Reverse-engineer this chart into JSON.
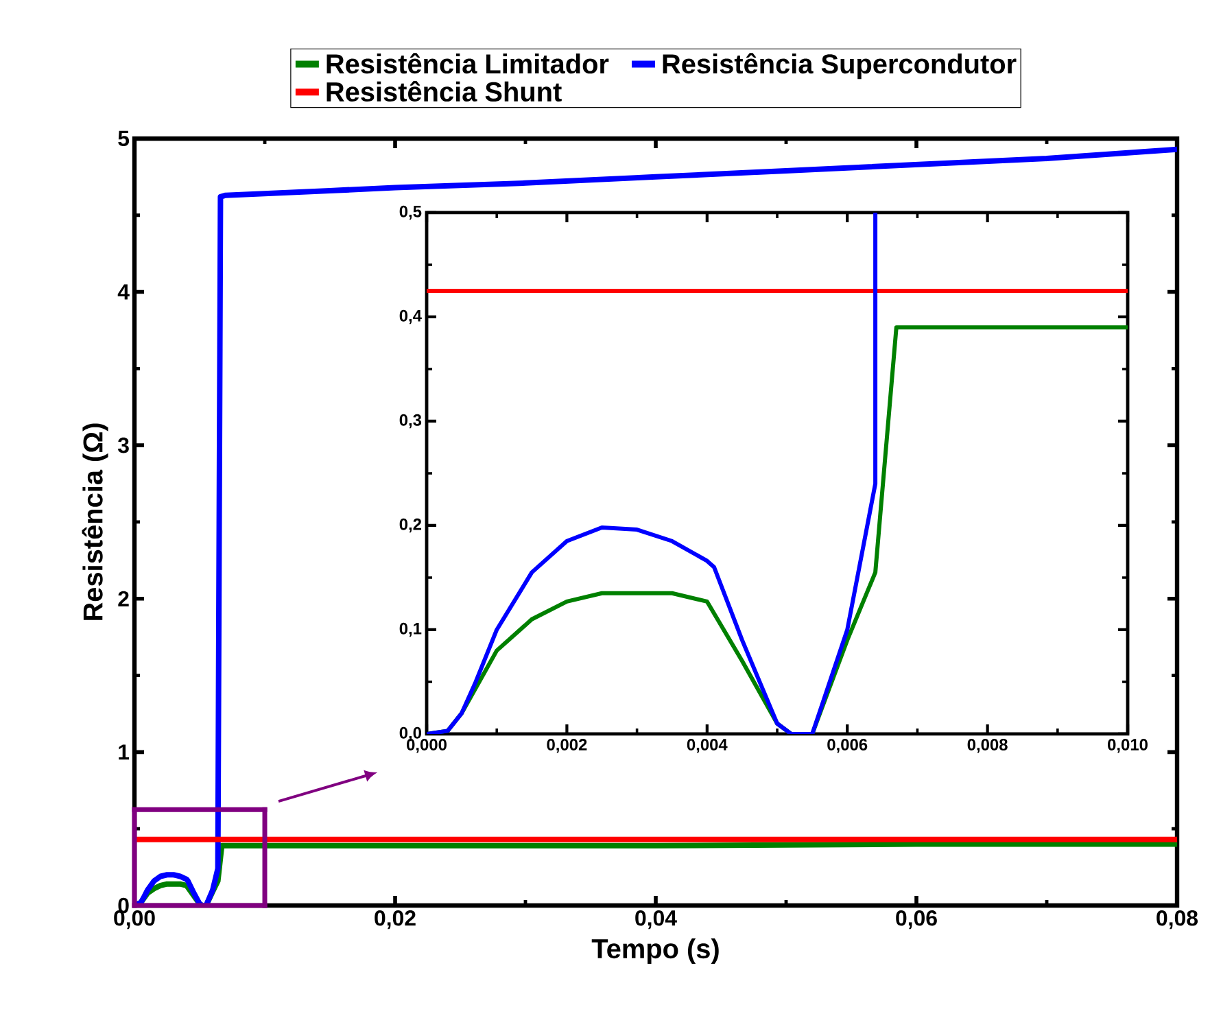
{
  "chart_data": [
    {
      "type": "line",
      "xlabel": "Tempo (s)",
      "ylabel": "Resistência (Ω)",
      "xlim": [
        0,
        0.08
      ],
      "ylim": [
        0,
        5
      ],
      "xticks": [
        {
          "value": 0,
          "label": "0,00"
        },
        {
          "value": 0.02,
          "label": "0,02"
        },
        {
          "value": 0.04,
          "label": "0,04"
        },
        {
          "value": 0.06,
          "label": "0,06"
        },
        {
          "value": 0.08,
          "label": "0,08"
        }
      ],
      "yticks": [
        0,
        1,
        2,
        3,
        4,
        5
      ],
      "legend": "top",
      "series": [
        {
          "name": "Resistência Limitador",
          "color": "#008000",
          "x": [
            0,
            0.0005,
            0.001,
            0.0015,
            0.002,
            0.0025,
            0.003,
            0.0035,
            0.004,
            0.0045,
            0.005,
            0.0052,
            0.0055,
            0.006,
            0.0064,
            0.0067,
            0.008,
            0.01,
            0.02,
            0.04,
            0.06,
            0.08
          ],
          "values": [
            0,
            0.02,
            0.08,
            0.11,
            0.13,
            0.14,
            0.14,
            0.14,
            0.13,
            0.07,
            0.01,
            0,
            0,
            0.09,
            0.16,
            0.39,
            0.39,
            0.39,
            0.39,
            0.39,
            0.4,
            0.4
          ]
        },
        {
          "name": "Resistência Supercondutor",
          "color": "#0000ff",
          "x": [
            0,
            0.0005,
            0.0007,
            0.001,
            0.0015,
            0.002,
            0.0025,
            0.003,
            0.0035,
            0.004,
            0.0041,
            0.0045,
            0.005,
            0.0052,
            0.0055,
            0.006,
            0.0064,
            0.0066,
            0.007,
            0.015,
            0.02,
            0.03,
            0.04,
            0.05,
            0.06,
            0.07,
            0.08
          ],
          "values": [
            0,
            0.02,
            0.05,
            0.1,
            0.16,
            0.19,
            0.2,
            0.2,
            0.19,
            0.17,
            0.16,
            0.09,
            0.01,
            0,
            0,
            0.1,
            0.24,
            4.62,
            4.63,
            4.66,
            4.68,
            4.71,
            4.75,
            4.79,
            4.83,
            4.87,
            4.93
          ]
        },
        {
          "name": "Resistência Shunt",
          "color": "#ff0000",
          "x": [
            0,
            0.08
          ],
          "values": [
            0.43,
            0.43
          ]
        }
      ]
    },
    {
      "type": "line",
      "xlim": [
        0,
        0.01
      ],
      "ylim": [
        0,
        0.5
      ],
      "xticks": [
        {
          "value": 0,
          "label": "0,000"
        },
        {
          "value": 0.002,
          "label": "0,002"
        },
        {
          "value": 0.004,
          "label": "0,004"
        },
        {
          "value": 0.006,
          "label": "0,006"
        },
        {
          "value": 0.008,
          "label": "0,008"
        },
        {
          "value": 0.01,
          "label": "0,010"
        }
      ],
      "yticks": [
        {
          "value": 0,
          "label": "0,0"
        },
        {
          "value": 0.1,
          "label": "0,1"
        },
        {
          "value": 0.2,
          "label": "0,2"
        },
        {
          "value": 0.3,
          "label": "0,3"
        },
        {
          "value": 0.4,
          "label": "0,4"
        },
        {
          "value": 0.5,
          "label": "0,5"
        }
      ],
      "series": [
        {
          "color": "#ff0000",
          "x": [
            0,
            0.01
          ],
          "values": [
            0.425,
            0.425
          ]
        },
        {
          "color": "#008000",
          "x": [
            0,
            0.0003,
            0.0005,
            0.001,
            0.0015,
            0.002,
            0.0025,
            0.003,
            0.0035,
            0.004,
            0.0045,
            0.005,
            0.0052,
            0.0055,
            0.006,
            0.0064,
            0.0067,
            0.008,
            0.01
          ],
          "values": [
            0,
            0.003,
            0.02,
            0.08,
            0.11,
            0.127,
            0.135,
            0.135,
            0.135,
            0.127,
            0.07,
            0.01,
            0,
            0,
            0.09,
            0.155,
            0.39,
            0.39,
            0.39
          ]
        },
        {
          "color": "#0000ff",
          "x": [
            0,
            0.0003,
            0.0005,
            0.0007,
            0.001,
            0.0015,
            0.002,
            0.0025,
            0.003,
            0.0035,
            0.004,
            0.0041,
            0.0045,
            0.005,
            0.0052,
            0.0055,
            0.006,
            0.0064,
            0.0064
          ],
          "values": [
            0,
            0.003,
            0.02,
            0.05,
            0.1,
            0.155,
            0.185,
            0.198,
            0.196,
            0.185,
            0.166,
            0.16,
            0.09,
            0.01,
            0,
            0,
            0.1,
            0.24,
            0.5
          ]
        }
      ]
    }
  ]
}
